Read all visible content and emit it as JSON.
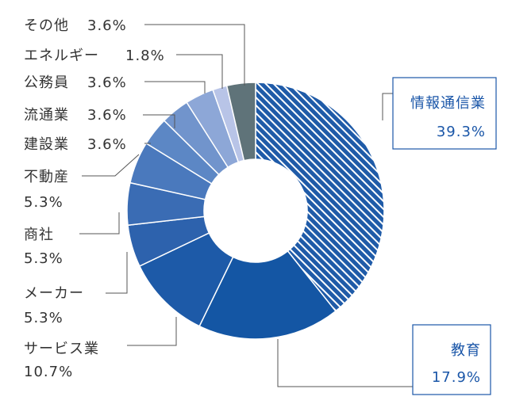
{
  "chart_data": {
    "type": "pie",
    "categories": [
      "情報通信業",
      "教育",
      "サービス業",
      "メーカー",
      "商社",
      "不動産",
      "建設業",
      "流通業",
      "公務員",
      "エネルギー",
      "その他"
    ],
    "values": [
      39.3,
      17.9,
      10.7,
      5.3,
      5.3,
      5.3,
      3.6,
      3.6,
      3.6,
      1.8,
      3.6
    ],
    "value_labels": [
      "39.3%",
      "17.9%",
      "10.7%",
      "5.3%",
      "5.3%",
      "5.3%",
      "3.6%",
      "3.6%",
      "3.6%",
      "1.8%",
      "3.6%"
    ],
    "colors": [
      "#1f5ba8",
      "#1456a4",
      "#1d5aa8",
      "#2d62ad",
      "#3a6cb4",
      "#4a79bd",
      "#5c87c5",
      "#7194cc",
      "#8da7d7",
      "#b8c4e7",
      "#5f7379"
    ],
    "hatched_first_slice": true,
    "donut": true,
    "legend": "none"
  }
}
